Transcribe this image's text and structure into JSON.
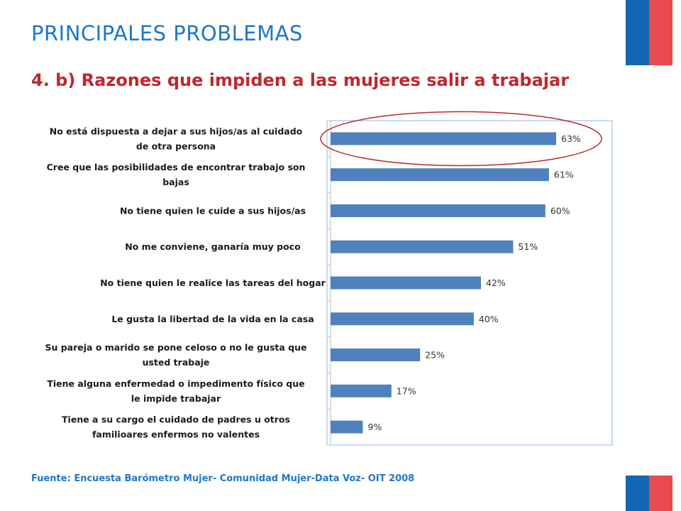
{
  "title": "PRINCIPALES PROBLEMAS",
  "subtitle": "4. b) Razones que impiden a las mujeres salir a trabajar",
  "source": "Fuente: Encuesta Barómetro Mujer- Comunidad Mujer-Data Voz- OIT 2008",
  "colors": {
    "bar": "#4f81bd",
    "highlight_ellipse": "#c0272d",
    "title": "#1f77c8",
    "subtitle": "#c0272d",
    "flag_blue": "#1565b7",
    "flag_red": "#e84a4f"
  },
  "chart_data": {
    "type": "bar",
    "orientation": "horizontal",
    "categories": [
      [
        "No está dispuesta a dejar a sus hijos/as al cuidado",
        "de otra persona"
      ],
      [
        "Cree que las posibilidades de encontrar trabajo son",
        "bajas"
      ],
      [
        "No tiene quien le cuide a sus hijos/as"
      ],
      [
        "No me conviene, ganaría muy poco"
      ],
      [
        "No tiene quien le realice las tareas del hogar"
      ],
      [
        "Le gusta la libertad de la vida en la casa"
      ],
      [
        "Su pareja o marido se pone celoso o no le gusta que",
        "usted trabaje"
      ],
      [
        "Tiene alguna enfermedad o impedimento físico que",
        "le impide trabajar"
      ],
      [
        "Tiene a su cargo el cuidado de padres u otros",
        "familioares enfermos no valentes"
      ]
    ],
    "values": [
      63,
      61,
      60,
      51,
      42,
      40,
      25,
      17,
      9
    ],
    "value_labels": [
      "63%",
      "61%",
      "60%",
      "51%",
      "42%",
      "40%",
      "25%",
      "17%",
      "9%"
    ],
    "unit": "%",
    "xlim": [
      0,
      70
    ],
    "highlighted_index": 0,
    "legend": "none",
    "grid": false
  }
}
